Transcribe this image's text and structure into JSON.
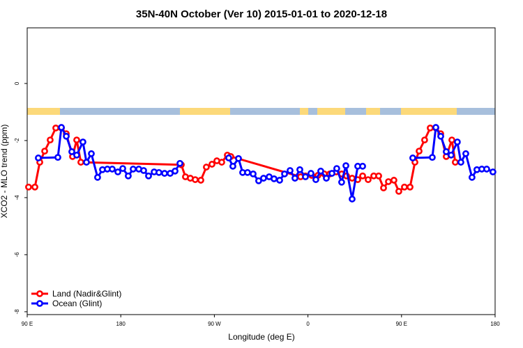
{
  "chart_data": {
    "type": "line",
    "title": "35N-40N October (Ver 10)   2015-01-01 to 2020-12-18",
    "x_label": "Longitude (deg E)",
    "y_label": "XCO2 - MLO trend (ppm)",
    "xlim": [
      90,
      540
    ],
    "ylim": [
      -8.1,
      1.95
    ],
    "xticks": [
      {
        "value": 90,
        "label": "90 E"
      },
      180,
      {
        "value": 270,
        "label": "90 W"
      },
      {
        "value": 360,
        "label": "0"
      },
      {
        "value": 450,
        "label": "90 E"
      },
      {
        "value": 540,
        "label": "180"
      }
    ],
    "yticks": [
      0,
      -2,
      -4,
      -6,
      -8
    ],
    "legend": "bottom-left",
    "series": [
      {
        "name": "Land (Nadir&Glint)",
        "color": "#ff0000",
        "x": [
          91.3,
          97.4,
          102.1,
          106.8,
          112.1,
          117.5,
          122.9,
          127.6,
          133.6,
          137.6,
          141.6,
          238.2,
          242.2,
          246.9,
          251.6,
          257.0,
          262.3,
          267.7,
          272.4,
          277.1,
          282.5,
          285.8,
          352.9,
          357.6,
          363.6,
          369.6,
          375.7,
          381.0,
          387.1,
          392.4,
          397.1,
          402.5,
          407.9,
          412.6,
          417.9,
          423.3,
          428.0,
          432.7,
          437.4,
          442.7,
          447.4,
          452.8,
          458.2,
          462.9,
          466.9,
          472.2,
          477.6,
          483.0,
          487.7,
          493.0,
          498.4,
          501.7
        ],
        "values": [
          -3.63,
          -3.63,
          -2.76,
          -2.37,
          -1.98,
          -1.56,
          -1.56,
          -1.76,
          -2.56,
          -1.98,
          -2.76,
          -2.85,
          -3.27,
          -3.32,
          -3.37,
          -3.39,
          -2.93,
          -2.83,
          -2.71,
          -2.76,
          -2.51,
          -2.56,
          -3.27,
          -3.24,
          -3.22,
          -3.22,
          -3.17,
          -3.17,
          -3.1,
          -3.17,
          -3.24,
          -3.32,
          -3.37,
          -3.24,
          -3.37,
          -3.24,
          -3.24,
          -3.66,
          -3.44,
          -3.39,
          -3.78,
          -3.63,
          -3.63,
          -2.76,
          -2.37,
          -1.98,
          -1.56,
          -1.56,
          -1.76,
          -2.56,
          -1.98,
          -2.76
        ]
      },
      {
        "name": "Ocean (Glint)",
        "color": "#0000ff",
        "x": [
          100.7,
          119.5,
          122.9,
          127.6,
          132.9,
          137.6,
          143.6,
          147.0,
          151.7,
          157.7,
          162.4,
          167.1,
          171.8,
          177.2,
          181.9,
          187.2,
          191.9,
          197.3,
          202.0,
          206.7,
          212.1,
          216.7,
          222.1,
          227.5,
          232.2,
          236.9,
          null,
          283.8,
          287.8,
          293.2,
          297.2,
          301.9,
          307.3,
          312.6,
          317.3,
          322.7,
          327.4,
          332.8,
          337.5,
          342.8,
          347.5,
          352.2,
          357.6,
          362.9,
          367.6,
          372.3,
          377.7,
          383.1,
          387.7,
          392.4,
          396.5,
          402.5,
          407.9,
          412.6,
          null,
          460.8,
          479.6,
          483.0,
          487.7,
          493.0,
          497.7,
          503.7,
          507.1,
          511.8,
          517.8,
          522.5,
          527.2,
          531.9,
          537.9
        ],
        "values": [
          -2.61,
          -2.59,
          -1.54,
          -1.85,
          -2.39,
          -2.51,
          -2.05,
          -2.76,
          -2.46,
          -3.29,
          -3.02,
          -3.0,
          -3.0,
          -3.1,
          -2.98,
          -3.24,
          -3.0,
          -3.0,
          -3.05,
          -3.24,
          -3.1,
          -3.12,
          -3.15,
          -3.15,
          -3.07,
          -2.8,
          null,
          -2.61,
          -2.9,
          -2.63,
          -3.12,
          -3.12,
          -3.17,
          -3.41,
          -3.32,
          -3.27,
          -3.34,
          -3.39,
          -3.17,
          -3.05,
          -3.32,
          -3.02,
          -3.27,
          -3.15,
          -3.37,
          -3.07,
          -3.32,
          -3.15,
          -2.98,
          -3.46,
          -2.88,
          -4.05,
          -2.9,
          -2.9,
          null,
          -2.61,
          -2.59,
          -1.54,
          -1.85,
          -2.39,
          -2.51,
          -2.05,
          -2.76,
          -2.46,
          -3.29,
          -3.02,
          -3.0,
          -3.0,
          -3.1
        ]
      }
    ]
  }
}
